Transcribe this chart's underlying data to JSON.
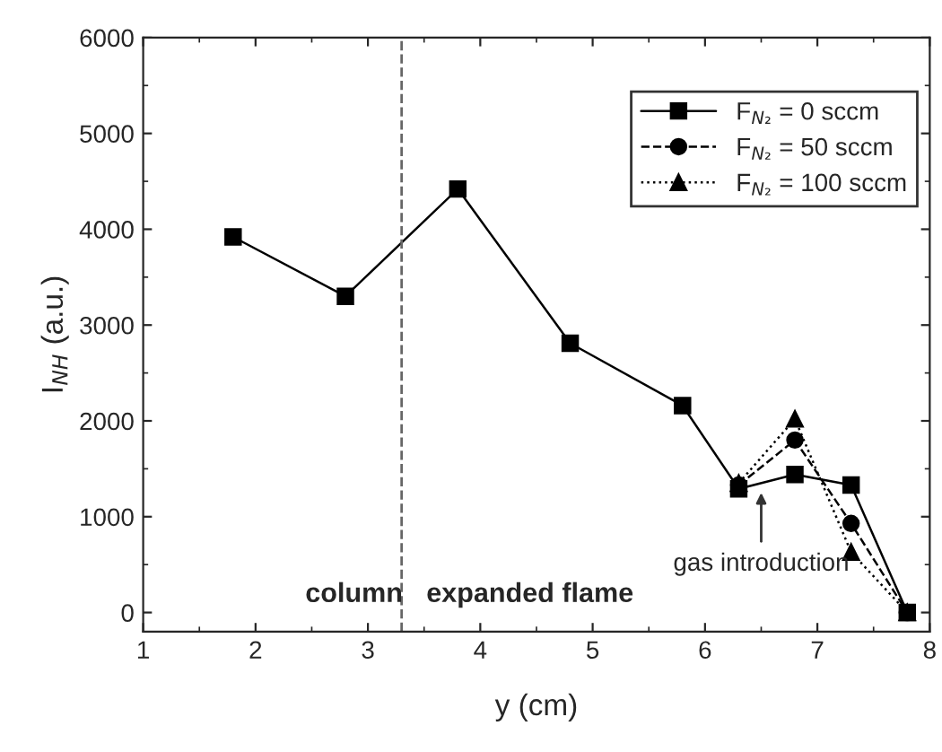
{
  "chart_data": {
    "type": "line",
    "xlabel": "y (cm)",
    "ylabel": "I$_{NH}$ (a.u.)",
    "xlim": [
      1,
      8
    ],
    "xticks": [
      1,
      2,
      3,
      4,
      5,
      6,
      7,
      8
    ],
    "ylim": [
      -200,
      6000
    ],
    "yticks": [
      0,
      1000,
      2000,
      3000,
      4000,
      5000,
      6000
    ],
    "series": [
      {
        "name": "F$_{N₂}$ = 0 sccm",
        "color": "#000000",
        "marker": "square",
        "line_style": "solid",
        "x": [
          1.8,
          2.8,
          3.8,
          4.8,
          5.8,
          6.3,
          6.8,
          7.3,
          7.8
        ],
        "values": [
          3920,
          3300,
          4420,
          2810,
          2160,
          1290,
          1440,
          1330,
          0
        ]
      },
      {
        "name": "F$_{N₂}$ = 50 sccm",
        "color": "#000000",
        "marker": "circle",
        "line_style": "dashed",
        "x": [
          6.3,
          6.8,
          7.3,
          7.8
        ],
        "values": [
          1330,
          1800,
          930,
          0
        ]
      },
      {
        "name": "F$_{N₂}$ = 100 sccm",
        "color": "#000000",
        "marker": "triangle",
        "line_style": "dotted",
        "x": [
          6.3,
          6.8,
          7.3,
          7.8
        ],
        "values": [
          1350,
          2020,
          630,
          0
        ]
      }
    ],
    "ref_lines": [
      {
        "axis": "x",
        "value": 3.3,
        "color": "#666666",
        "line_style": "dashed"
      }
    ],
    "annotations": [
      "column",
      "expanded flame",
      {
        "text": "gas introduction",
        "x": 6.5,
        "y": 1250
      }
    ],
    "legend": "top right",
    "grid": false
  }
}
